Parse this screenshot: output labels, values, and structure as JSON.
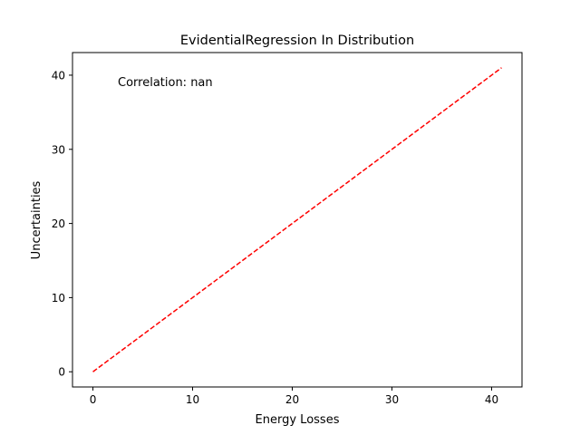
{
  "chart_data": {
    "type": "line",
    "title": "EvidentialRegression In Distribution",
    "xlabel": "Energy Losses",
    "ylabel": "Uncertainties",
    "annotation": "Correlation: nan",
    "xlim": [
      -2.05,
      43.05
    ],
    "ylim": [
      -2.05,
      43.05
    ],
    "xticks": [
      0,
      10,
      20,
      30,
      40
    ],
    "yticks": [
      0,
      10,
      20,
      30,
      40
    ],
    "grid": false,
    "series": [
      {
        "style": "dashed",
        "color": "#ff0000",
        "x": [
          0,
          41
        ],
        "y": [
          0,
          41
        ]
      }
    ]
  }
}
